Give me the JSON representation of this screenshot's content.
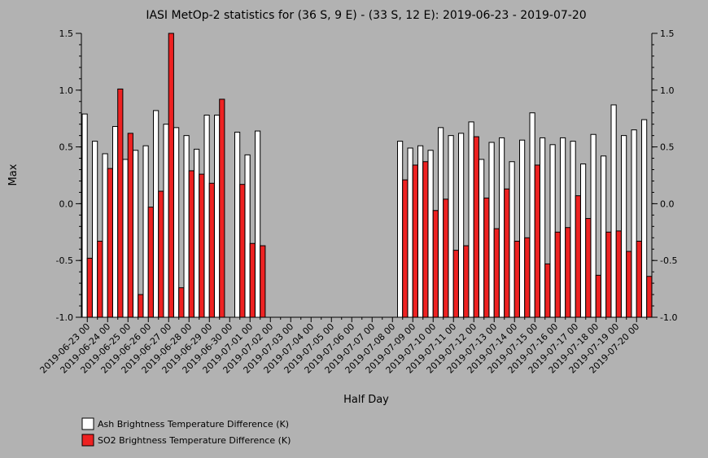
{
  "chart_data": {
    "type": "bar",
    "title": "IASI MetOp-2 statistics for (36 S, 9 E) - (33 S, 12 E): 2019-06-23 - 2019-07-20",
    "xlabel": "Half Day",
    "ylabel": "Max",
    "ylim": [
      -1.0,
      1.5
    ],
    "yticks": [
      "-1.0",
      "-0.5",
      "0.0",
      "0.5",
      "1.0",
      "1.5"
    ],
    "x_tick_labels": [
      "2019-06-23 00",
      "2019-06-24 00",
      "2019-06-25 00",
      "2019-06-26 00",
      "2019-06-27 00",
      "2019-06-28 00",
      "2019-06-29 00",
      "2019-06-30 00",
      "2019-07-01 00",
      "2019-07-02 00",
      "2019-07-03 00",
      "2019-07-04 00",
      "2019-07-05 00",
      "2019-07-06 00",
      "2019-07-07 00",
      "2019-07-08 00",
      "2019-07-09 00",
      "2019-07-10 00",
      "2019-07-11 00",
      "2019-07-12 00",
      "2019-07-13 00",
      "2019-07-14 00",
      "2019-07-15 00",
      "2019-07-16 00",
      "2019-07-17 00",
      "2019-07-18 00",
      "2019-07-19 00",
      "2019-07-20 00"
    ],
    "grid": false,
    "legend_position": "bottom-left",
    "series": [
      {
        "name": "Ash Brightness Temperature Difference (K)",
        "color": "#ffffff",
        "values": [
          0.79,
          0.55,
          0.44,
          0.68,
          0.39,
          0.47,
          0.51,
          0.82,
          0.7,
          0.67,
          0.6,
          0.48,
          0.78,
          0.78,
          null,
          0.63,
          0.43,
          0.64,
          null,
          null,
          null,
          null,
          null,
          null,
          null,
          null,
          null,
          null,
          null,
          null,
          null,
          0.55,
          0.49,
          0.51,
          0.47,
          0.67,
          0.6,
          0.62,
          0.72,
          0.39,
          0.54,
          0.58,
          0.37,
          0.56,
          0.8,
          0.58,
          0.52,
          0.58,
          0.55,
          0.35,
          0.61,
          0.42,
          0.87,
          0.6,
          0.65,
          0.74
        ]
      },
      {
        "name": "SO2 Brightness Temperature Difference (K)",
        "color": "#ee2222",
        "values": [
          -0.48,
          -0.33,
          0.31,
          1.01,
          0.62,
          -0.8,
          -0.03,
          0.11,
          1.5,
          -0.74,
          0.29,
          0.26,
          0.18,
          0.92,
          null,
          0.17,
          -0.35,
          -0.37,
          null,
          null,
          null,
          null,
          null,
          null,
          null,
          null,
          null,
          null,
          null,
          null,
          null,
          0.21,
          0.34,
          0.37,
          -0.06,
          0.04,
          -0.41,
          -0.37,
          0.59,
          0.05,
          -0.22,
          0.13,
          -0.33,
          -0.3,
          0.34,
          -0.53,
          -0.25,
          -0.21,
          0.07,
          -0.13,
          -0.63,
          -0.25,
          -0.24,
          -0.42,
          -0.33,
          -0.64
        ]
      }
    ]
  }
}
